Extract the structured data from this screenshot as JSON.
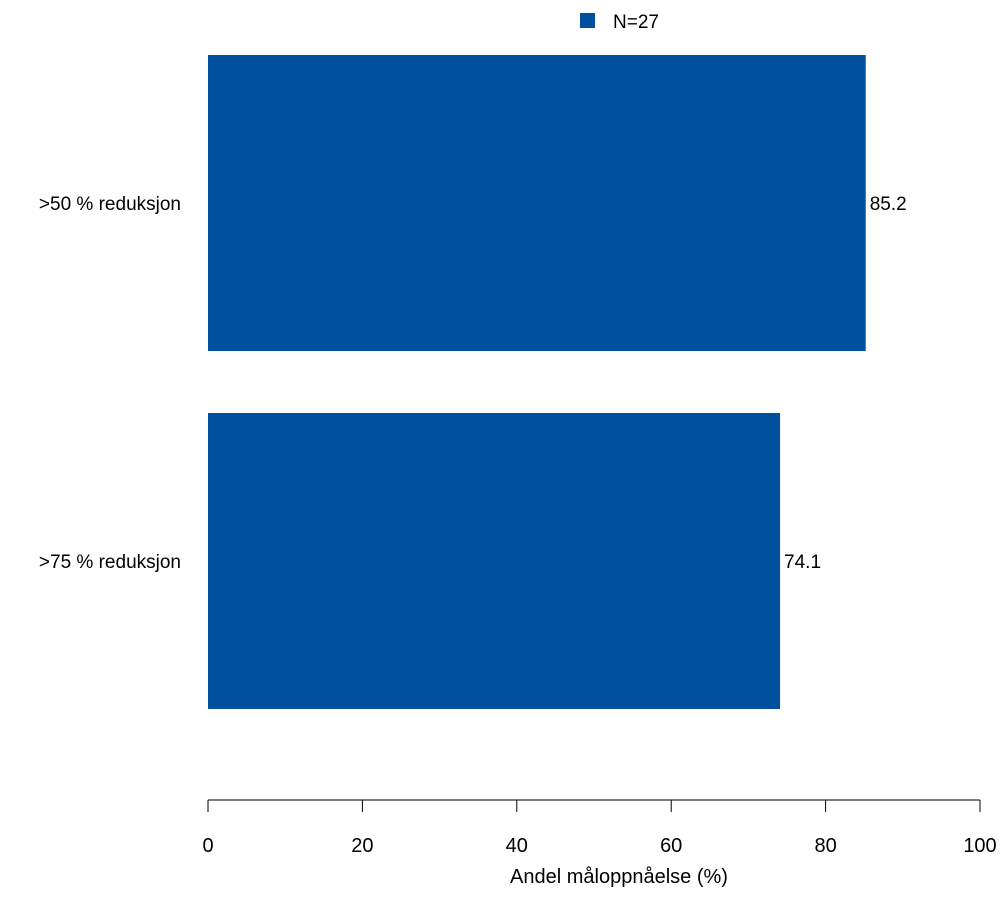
{
  "chart_data": {
    "type": "bar",
    "orientation": "horizontal",
    "categories": [
      ">50 % reduksjon",
      ">75 % reduksjon"
    ],
    "series": [
      {
        "name": "N=27",
        "values": [
          85.2,
          74.1
        ],
        "color": "#00509E"
      }
    ],
    "value_labels": [
      "85.2",
      "74.1"
    ],
    "xlabel": "Andel måloppnåelse (%)",
    "ylabel": "",
    "xlim": [
      0,
      100
    ],
    "xticks": [
      0,
      20,
      40,
      60,
      80,
      100
    ],
    "xtick_labels": [
      "0",
      "20",
      "40",
      "60",
      "80",
      "100"
    ],
    "grid": false,
    "legend_position": "top-center"
  }
}
